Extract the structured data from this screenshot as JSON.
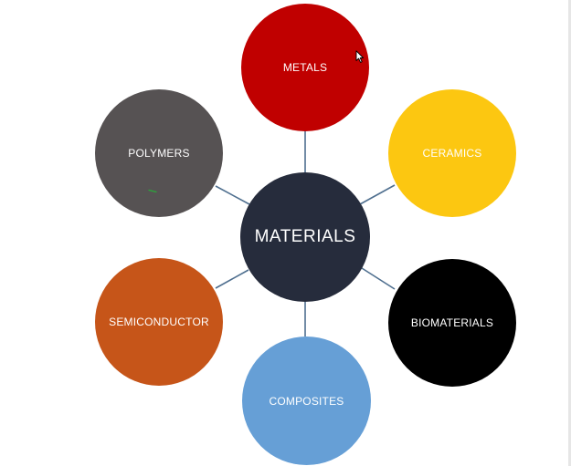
{
  "diagram": {
    "center": {
      "label": "MATERIALS",
      "color": "#262c3c"
    },
    "nodes": [
      {
        "id": "metals",
        "label": "METALS",
        "color": "#c00000"
      },
      {
        "id": "ceramics",
        "label": "CERAMICS",
        "color": "#fcc711"
      },
      {
        "id": "biomaterials",
        "label": "BIOMATERIALS",
        "color": "#000000"
      },
      {
        "id": "composites",
        "label": "COMPOSITES",
        "color": "#669fd6"
      },
      {
        "id": "semiconductor",
        "label": "SEMICONDUCTOR",
        "color": "#c65519"
      },
      {
        "id": "polymers",
        "label": "POLYMERS",
        "color": "#565253"
      }
    ],
    "connector_color": "#4f6f8f"
  },
  "overlay": {
    "cursor_icon": "mouse-pointer-icon",
    "pen_mark_icon": "green-pen-mark-icon",
    "pen_mark_color": "#2aa83a"
  }
}
